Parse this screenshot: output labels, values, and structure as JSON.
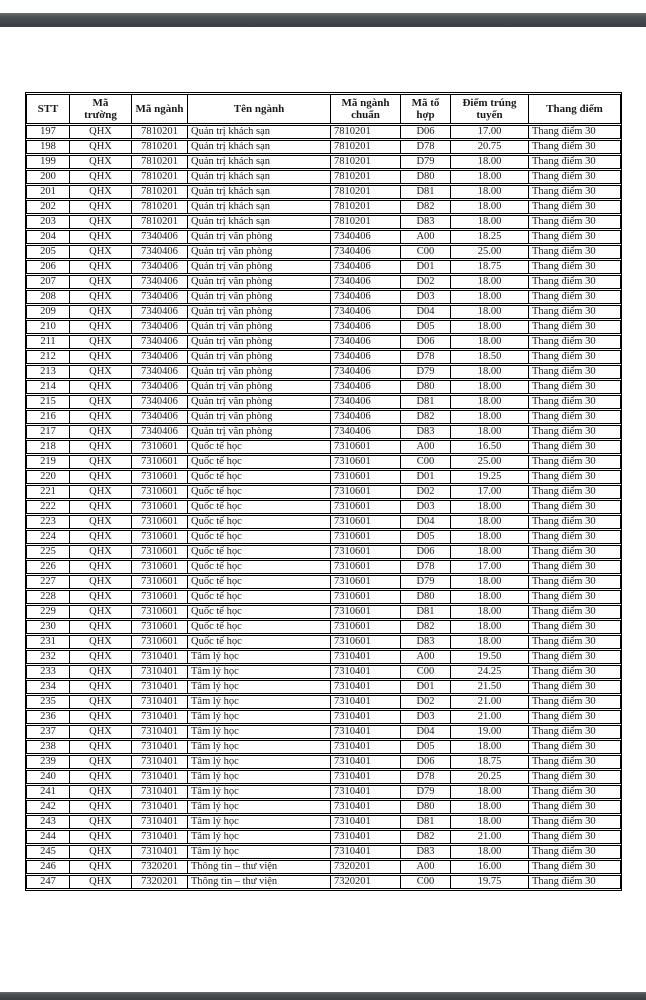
{
  "document": {
    "kind": "admission-score-table-page",
    "table": {
      "headers": [
        "STT",
        "Mã\ntrường",
        "Mã ngành",
        "Tên ngành",
        "Mã ngành\nchuẩn",
        "Mã tổ\nhợp",
        "Điểm trúng\ntuyển",
        "Thang điểm"
      ],
      "rows": [
        [
          "197",
          "QHX",
          "7810201",
          "Quản trị khách sạn",
          "7810201",
          "D06",
          "17.00",
          "Thang điểm 30"
        ],
        [
          "198",
          "QHX",
          "7810201",
          "Quản trị khách sạn",
          "7810201",
          "D78",
          "20.75",
          "Thang điểm 30"
        ],
        [
          "199",
          "QHX",
          "7810201",
          "Quản trị khách sạn",
          "7810201",
          "D79",
          "18.00",
          "Thang điểm 30"
        ],
        [
          "200",
          "QHX",
          "7810201",
          "Quản trị khách sạn",
          "7810201",
          "D80",
          "18.00",
          "Thang điểm 30"
        ],
        [
          "201",
          "QHX",
          "7810201",
          "Quản trị khách sạn",
          "7810201",
          "D81",
          "18.00",
          "Thang điểm 30"
        ],
        [
          "202",
          "QHX",
          "7810201",
          "Quản trị khách sạn",
          "7810201",
          "D82",
          "18.00",
          "Thang điểm 30"
        ],
        [
          "203",
          "QHX",
          "7810201",
          "Quản trị khách sạn",
          "7810201",
          "D83",
          "18.00",
          "Thang điểm 30"
        ],
        [
          "204",
          "QHX",
          "7340406",
          "Quản trị văn phòng",
          "7340406",
          "A00",
          "18.25",
          "Thang điểm 30"
        ],
        [
          "205",
          "QHX",
          "7340406",
          "Quản trị văn phòng",
          "7340406",
          "C00",
          "25.00",
          "Thang điểm 30"
        ],
        [
          "206",
          "QHX",
          "7340406",
          "Quản trị văn phòng",
          "7340406",
          "D01",
          "18.75",
          "Thang điểm 30"
        ],
        [
          "207",
          "QHX",
          "7340406",
          "Quản trị văn phòng",
          "7340406",
          "D02",
          "18.00",
          "Thang điểm 30"
        ],
        [
          "208",
          "QHX",
          "7340406",
          "Quản trị văn phòng",
          "7340406",
          "D03",
          "18.00",
          "Thang điểm 30"
        ],
        [
          "209",
          "QHX",
          "7340406",
          "Quản trị văn phòng",
          "7340406",
          "D04",
          "18.00",
          "Thang điểm 30"
        ],
        [
          "210",
          "QHX",
          "7340406",
          "Quản trị văn phòng",
          "7340406",
          "D05",
          "18.00",
          "Thang điểm 30"
        ],
        [
          "211",
          "QHX",
          "7340406",
          "Quản trị văn phòng",
          "7340406",
          "D06",
          "18.00",
          "Thang điểm 30"
        ],
        [
          "212",
          "QHX",
          "7340406",
          "Quản trị văn phòng",
          "7340406",
          "D78",
          "18.50",
          "Thang điểm 30"
        ],
        [
          "213",
          "QHX",
          "7340406",
          "Quản trị văn phòng",
          "7340406",
          "D79",
          "18.00",
          "Thang điểm 30"
        ],
        [
          "214",
          "QHX",
          "7340406",
          "Quản trị văn phòng",
          "7340406",
          "D80",
          "18.00",
          "Thang điểm 30"
        ],
        [
          "215",
          "QHX",
          "7340406",
          "Quản trị văn phòng",
          "7340406",
          "D81",
          "18.00",
          "Thang điểm 30"
        ],
        [
          "216",
          "QHX",
          "7340406",
          "Quản trị văn phòng",
          "7340406",
          "D82",
          "18.00",
          "Thang điểm 30"
        ],
        [
          "217",
          "QHX",
          "7340406",
          "Quản trị văn phòng",
          "7340406",
          "D83",
          "18.00",
          "Thang điểm 30"
        ],
        [
          "218",
          "QHX",
          "7310601",
          "Quốc tế học",
          "7310601",
          "A00",
          "16.50",
          "Thang điểm 30"
        ],
        [
          "219",
          "QHX",
          "7310601",
          "Quốc tế học",
          "7310601",
          "C00",
          "25.00",
          "Thang điểm 30"
        ],
        [
          "220",
          "QHX",
          "7310601",
          "Quốc tế học",
          "7310601",
          "D01",
          "19.25",
          "Thang điểm 30"
        ],
        [
          "221",
          "QHX",
          "7310601",
          "Quốc tế học",
          "7310601",
          "D02",
          "17.00",
          "Thang điểm 30"
        ],
        [
          "222",
          "QHX",
          "7310601",
          "Quốc tế học",
          "7310601",
          "D03",
          "18.00",
          "Thang điểm 30"
        ],
        [
          "223",
          "QHX",
          "7310601",
          "Quốc tế học",
          "7310601",
          "D04",
          "18.00",
          "Thang điểm 30"
        ],
        [
          "224",
          "QHX",
          "7310601",
          "Quốc tế học",
          "7310601",
          "D05",
          "18.00",
          "Thang điểm 30"
        ],
        [
          "225",
          "QHX",
          "7310601",
          "Quốc tế học",
          "7310601",
          "D06",
          "18.00",
          "Thang điểm 30"
        ],
        [
          "226",
          "QHX",
          "7310601",
          "Quốc tế học",
          "7310601",
          "D78",
          "17.00",
          "Thang điểm 30"
        ],
        [
          "227",
          "QHX",
          "7310601",
          "Quốc tế học",
          "7310601",
          "D79",
          "18.00",
          "Thang điểm 30"
        ],
        [
          "228",
          "QHX",
          "7310601",
          "Quốc tế học",
          "7310601",
          "D80",
          "18.00",
          "Thang điểm 30"
        ],
        [
          "229",
          "QHX",
          "7310601",
          "Quốc tế học",
          "7310601",
          "D81",
          "18.00",
          "Thang điểm 30"
        ],
        [
          "230",
          "QHX",
          "7310601",
          "Quốc tế học",
          "7310601",
          "D82",
          "18.00",
          "Thang điểm 30"
        ],
        [
          "231",
          "QHX",
          "7310601",
          "Quốc tế học",
          "7310601",
          "D83",
          "18.00",
          "Thang điểm 30"
        ],
        [
          "232",
          "QHX",
          "7310401",
          "Tâm lý học",
          "7310401",
          "A00",
          "19.50",
          "Thang điểm 30"
        ],
        [
          "233",
          "QHX",
          "7310401",
          "Tâm lý học",
          "7310401",
          "C00",
          "24.25",
          "Thang điểm 30"
        ],
        [
          "234",
          "QHX",
          "7310401",
          "Tâm lý học",
          "7310401",
          "D01",
          "21.50",
          "Thang điểm 30"
        ],
        [
          "235",
          "QHX",
          "7310401",
          "Tâm lý học",
          "7310401",
          "D02",
          "21.00",
          "Thang điểm 30"
        ],
        [
          "236",
          "QHX",
          "7310401",
          "Tâm lý học",
          "7310401",
          "D03",
          "21.00",
          "Thang điểm 30"
        ],
        [
          "237",
          "QHX",
          "7310401",
          "Tâm lý học",
          "7310401",
          "D04",
          "19.00",
          "Thang điểm 30"
        ],
        [
          "238",
          "QHX",
          "7310401",
          "Tâm lý học",
          "7310401",
          "D05",
          "18.00",
          "Thang điểm 30"
        ],
        [
          "239",
          "QHX",
          "7310401",
          "Tâm lý học",
          "7310401",
          "D06",
          "18.75",
          "Thang điểm 30"
        ],
        [
          "240",
          "QHX",
          "7310401",
          "Tâm lý học",
          "7310401",
          "D78",
          "20.25",
          "Thang điểm 30"
        ],
        [
          "241",
          "QHX",
          "7310401",
          "Tâm lý học",
          "7310401",
          "D79",
          "18.00",
          "Thang điểm 30"
        ],
        [
          "242",
          "QHX",
          "7310401",
          "Tâm lý học",
          "7310401",
          "D80",
          "18.00",
          "Thang điểm 30"
        ],
        [
          "243",
          "QHX",
          "7310401",
          "Tâm lý học",
          "7310401",
          "D81",
          "18.00",
          "Thang điểm 30"
        ],
        [
          "244",
          "QHX",
          "7310401",
          "Tâm lý học",
          "7310401",
          "D82",
          "21.00",
          "Thang điểm 30"
        ],
        [
          "245",
          "QHX",
          "7310401",
          "Tâm lý học",
          "7310401",
          "D83",
          "18.00",
          "Thang điểm 30"
        ],
        [
          "246",
          "QHX",
          "7320201",
          "Thông tin – thư viện",
          "7320201",
          "A00",
          "16.00",
          "Thang điểm 30"
        ],
        [
          "247",
          "QHX",
          "7320201",
          "Thông tin – thư viện",
          "7320201",
          "C00",
          "19.75",
          "Thang điểm 30"
        ]
      ]
    },
    "colors": {
      "page_background": "#ffffff",
      "separator_bar": "#45484b",
      "table_border": "#000000"
    }
  }
}
